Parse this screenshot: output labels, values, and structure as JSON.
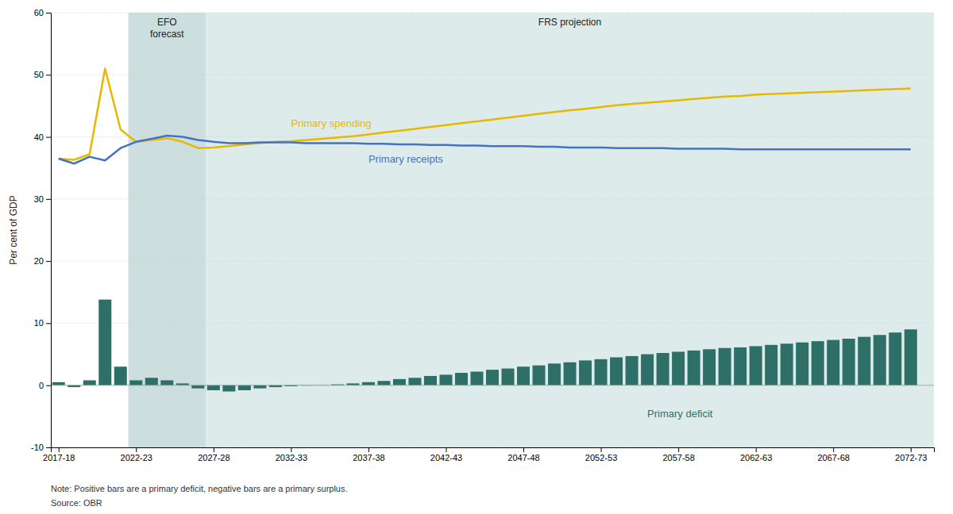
{
  "chart_data": {
    "type": "bar",
    "ylabel": "Per cent of GDP",
    "note": "Note: Positive bars are a primary deficit, negative bars are a primary surplus.",
    "source": "Source: OBR",
    "x": [
      2017.5,
      2018.5,
      2019.5,
      2020.5,
      2021.5,
      2022.5,
      2023.5,
      2024.5,
      2025.5,
      2026.5,
      2027.5,
      2028.5,
      2029.5,
      2030.5,
      2031.5,
      2032.5,
      2033.5,
      2034.5,
      2035.5,
      2036.5,
      2037.5,
      2038.5,
      2039.5,
      2040.5,
      2041.5,
      2042.5,
      2043.5,
      2044.5,
      2045.5,
      2046.5,
      2047.5,
      2048.5,
      2049.5,
      2050.5,
      2051.5,
      2052.5,
      2053.5,
      2054.5,
      2055.5,
      2056.5,
      2057.5,
      2058.5,
      2059.5,
      2060.5,
      2061.5,
      2062.5,
      2063.5,
      2064.5,
      2065.5,
      2066.5,
      2067.5,
      2068.5,
      2069.5,
      2070.5,
      2071.5,
      2072.5
    ],
    "xlim": [
      2017.0,
      2074.0
    ],
    "xticks": [
      {
        "value": 2017.5,
        "label": "2017-18"
      },
      {
        "value": 2022.5,
        "label": "2022-23"
      },
      {
        "value": 2027.5,
        "label": "2027-28"
      },
      {
        "value": 2032.5,
        "label": "2032-33"
      },
      {
        "value": 2037.5,
        "label": "2037-38"
      },
      {
        "value": 2042.5,
        "label": "2042-43"
      },
      {
        "value": 2047.5,
        "label": "2047-48"
      },
      {
        "value": 2052.5,
        "label": "2052-53"
      },
      {
        "value": 2057.5,
        "label": "2057-58"
      },
      {
        "value": 2062.5,
        "label": "2062-63"
      },
      {
        "value": 2067.5,
        "label": "2067-68"
      },
      {
        "value": 2072.5,
        "label": "2072-73"
      }
    ],
    "ylim": [
      -10,
      60
    ],
    "yticks": [
      -10,
      0,
      10,
      20,
      30,
      40,
      50,
      60
    ],
    "grid": true,
    "spans": [
      {
        "label": "EFO\nforecast",
        "start": 2022.0,
        "end": 2027.0,
        "color": "#ccdedd"
      },
      {
        "label": "FRS projection",
        "start": 2027.0,
        "end": 2074.0,
        "color": "#ddecea"
      }
    ],
    "series": [
      {
        "name": "Primary deficit",
        "type": "bar",
        "color": "#2e7068",
        "values": [
          0.5,
          -0.3,
          0.8,
          13.8,
          3.0,
          0.8,
          1.2,
          0.8,
          0.3,
          -0.5,
          -0.8,
          -1.0,
          -0.8,
          -0.5,
          -0.3,
          -0.15,
          -0.05,
          0.05,
          0.15,
          0.3,
          0.5,
          0.7,
          1.0,
          1.2,
          1.5,
          1.7,
          2.0,
          2.2,
          2.5,
          2.7,
          3.0,
          3.2,
          3.5,
          3.7,
          4.0,
          4.2,
          4.5,
          4.7,
          5.0,
          5.2,
          5.4,
          5.6,
          5.8,
          6.0,
          6.1,
          6.3,
          6.5,
          6.7,
          6.9,
          7.1,
          7.3,
          7.5,
          7.8,
          8.1,
          8.5,
          9.0
        ]
      },
      {
        "name": "Primary spending",
        "type": "line",
        "color": "#e8b800",
        "values": [
          36.5,
          36.3,
          37.2,
          51.0,
          41.2,
          39.2,
          39.5,
          39.8,
          39.2,
          38.2,
          38.3,
          38.5,
          38.8,
          39.0,
          39.2,
          39.3,
          39.5,
          39.7,
          39.9,
          40.1,
          40.4,
          40.7,
          41.0,
          41.3,
          41.6,
          41.9,
          42.2,
          42.5,
          42.8,
          43.1,
          43.4,
          43.7,
          44.0,
          44.3,
          44.5,
          44.8,
          45.1,
          45.3,
          45.5,
          45.7,
          45.9,
          46.1,
          46.3,
          46.5,
          46.6,
          46.8,
          46.9,
          47.0,
          47.1,
          47.2,
          47.3,
          47.4,
          47.5,
          47.6,
          47.7,
          47.8
        ]
      },
      {
        "name": "Primary receipts",
        "type": "line",
        "color": "#4472c4",
        "values": [
          36.5,
          35.7,
          36.8,
          36.2,
          38.2,
          39.2,
          39.7,
          40.2,
          40.0,
          39.5,
          39.2,
          39.0,
          39.0,
          39.1,
          39.1,
          39.1,
          39.0,
          39.0,
          39.0,
          39.0,
          38.9,
          38.9,
          38.8,
          38.8,
          38.7,
          38.7,
          38.6,
          38.6,
          38.5,
          38.5,
          38.5,
          38.4,
          38.4,
          38.3,
          38.3,
          38.3,
          38.2,
          38.2,
          38.2,
          38.2,
          38.1,
          38.1,
          38.1,
          38.1,
          38.0,
          38.0,
          38.0,
          38.0,
          38.0,
          38.0,
          38.0,
          38.0,
          38.0,
          38.0,
          38.0,
          38.0
        ]
      }
    ]
  }
}
